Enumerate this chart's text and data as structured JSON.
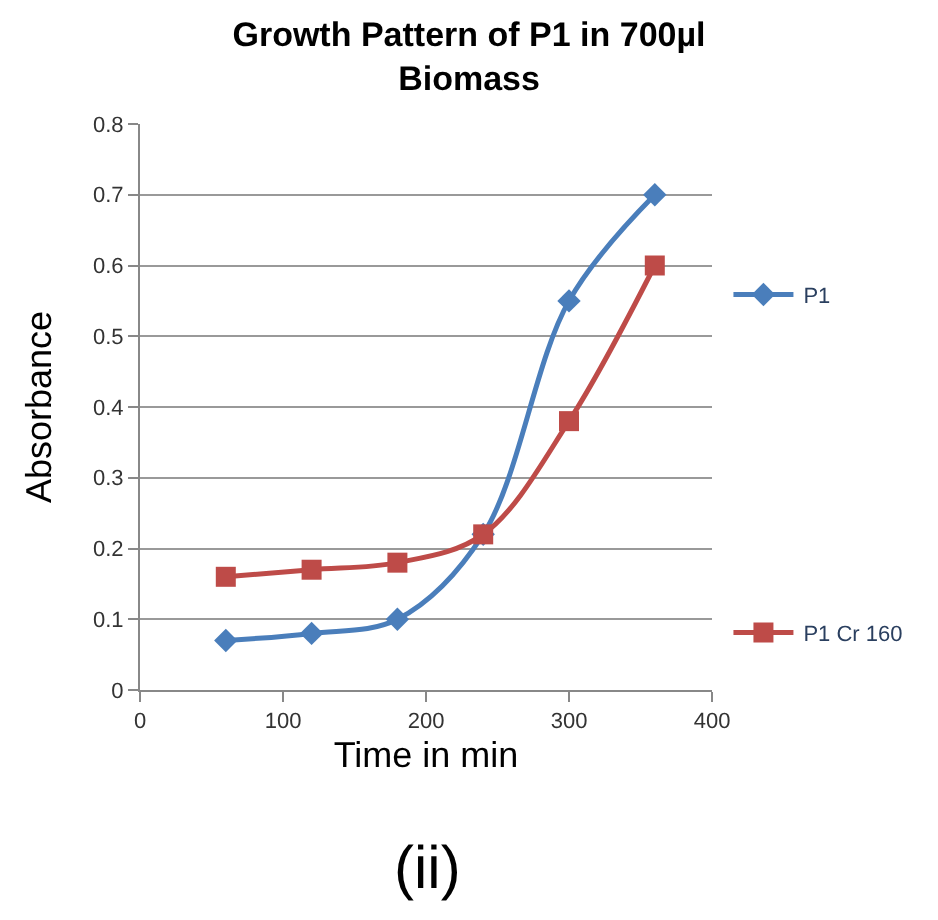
{
  "chart_data": {
    "type": "line",
    "title": "Growth Pattern of P1 in 700µl Biomass",
    "xlabel": "Time in min",
    "ylabel": "Absorbance",
    "x": [
      60,
      120,
      180,
      240,
      300,
      360
    ],
    "series": [
      {
        "name": "P1",
        "color": "#4a7ebb",
        "marker": "diamond",
        "values": [
          0.07,
          0.08,
          0.1,
          0.22,
          0.55,
          0.7
        ]
      },
      {
        "name": "P1 Cr 160",
        "color": "#be4b48",
        "marker": "square",
        "values": [
          0.16,
          0.17,
          0.18,
          0.22,
          0.38,
          0.6
        ]
      }
    ],
    "xlim": [
      0,
      400
    ],
    "xticks": [
      0,
      100,
      200,
      300,
      400
    ],
    "ylim": [
      0,
      0.8
    ],
    "yticks": [
      0,
      0.1,
      0.2,
      0.3,
      0.4,
      0.5,
      0.6,
      0.7,
      0.8
    ],
    "grid": "y",
    "legend": "right",
    "line_style": "solid",
    "annotations": [
      "(ii)"
    ]
  }
}
